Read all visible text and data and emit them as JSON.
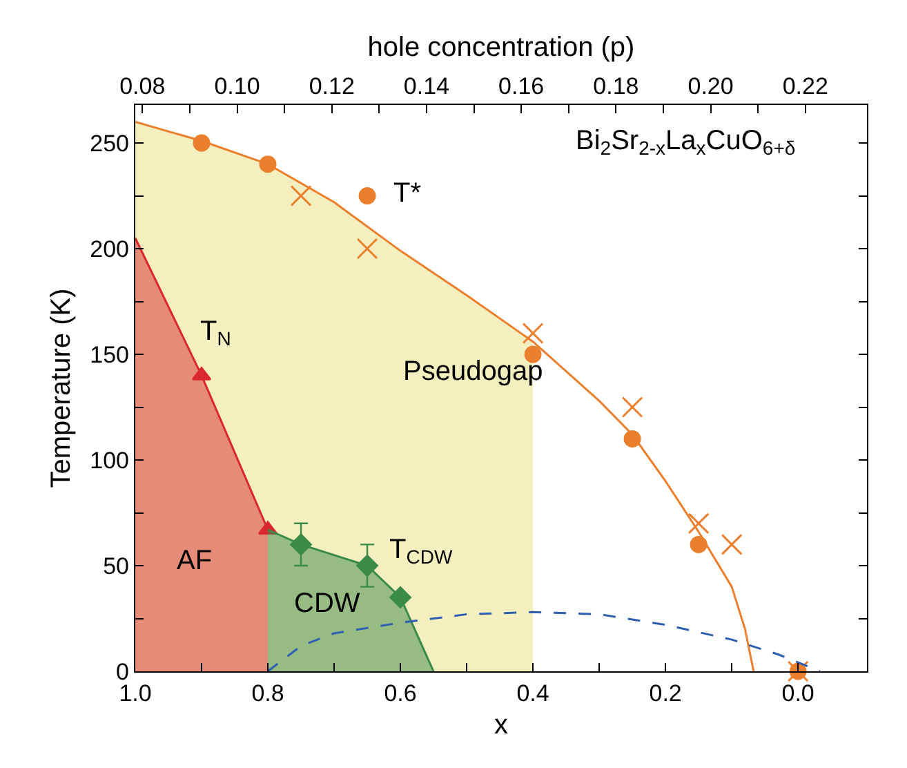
{
  "chart_data": {
    "type": "line",
    "xlabel": "x",
    "ylabel": "Temperature (K)",
    "x2label": "hole concentration (p)",
    "xlim": [
      1.0,
      -0.104
    ],
    "ylim": [
      0,
      268
    ],
    "x2lim": [
      0.0785,
      0.233
    ],
    "xticks": [
      {
        "value": 1.0,
        "label": "1.0"
      },
      {
        "value": 0.9,
        "label": null
      },
      0.8,
      {
        "value": 0.7,
        "label": null
      },
      0.6,
      {
        "value": 0.5,
        "label": null
      },
      0.4,
      {
        "value": 0.3,
        "label": null
      },
      0.2,
      {
        "value": 0.1,
        "label": null
      },
      {
        "value": 0,
        "label": "0.0"
      }
    ],
    "x2ticks": [
      {
        "value": 0.08,
        "label": "0.08"
      },
      {
        "value": 0.09,
        "label": null
      },
      {
        "value": 0.1,
        "label": "0.10"
      },
      {
        "value": 0.11,
        "label": null
      },
      {
        "value": 0.12,
        "label": "0.12"
      },
      {
        "value": 0.13,
        "label": null
      },
      {
        "value": 0.14,
        "label": "0.14"
      },
      {
        "value": 0.15,
        "label": null
      },
      {
        "value": 0.16,
        "label": "0.16"
      },
      {
        "value": 0.17,
        "label": null
      },
      {
        "value": 0.18,
        "label": "0.18"
      },
      {
        "value": 0.19,
        "label": null
      },
      {
        "value": 0.2,
        "label": "0.20"
      },
      {
        "value": 0.21,
        "label": null
      },
      {
        "value": 0.22,
        "label": "0.22"
      }
    ],
    "yticks": [
      0,
      {
        "value": 25,
        "label": null
      },
      50,
      {
        "value": 75,
        "label": null
      },
      100,
      {
        "value": 125,
        "label": null
      },
      150,
      {
        "value": 175,
        "label": null
      },
      200,
      {
        "value": 225,
        "label": null
      },
      250
    ],
    "series": [
      {
        "type": "area",
        "color": "#f3efbe",
        "x": [
          1.0,
          0.9,
          0.8,
          0.7,
          0.6,
          0.5,
          0.4
        ],
        "values": [
          260,
          251,
          240,
          222,
          199,
          178,
          156
        ]
      },
      {
        "color": "#ea7f2e",
        "marker": "none",
        "line_style": "solid",
        "x": [
          1.0,
          0.9,
          0.8,
          0.7,
          0.6,
          0.5,
          0.4,
          0.3,
          0.25,
          0.2,
          0.15,
          0.1,
          0.08,
          0.067
        ],
        "values": [
          260,
          251,
          240,
          222,
          199,
          178,
          156,
          128,
          112,
          90,
          66,
          40,
          20,
          0
        ]
      },
      {
        "type": "scatter",
        "color": "#ea7f2e",
        "marker": "circle",
        "x": [
          0.9,
          0.8,
          0.65,
          0.4,
          0.25,
          0.15,
          0.0
        ],
        "values": [
          250,
          240,
          225,
          150,
          110,
          60,
          0
        ]
      },
      {
        "type": "scatter",
        "color": "#ea7f2e",
        "marker": "cross",
        "x": [
          0.75,
          0.65,
          0.4,
          0.25,
          0.15,
          0.1,
          0.0
        ],
        "values": [
          225,
          200,
          160,
          125,
          70,
          60,
          0
        ]
      },
      {
        "type": "area",
        "color": "#d9282f",
        "line_style": "solid",
        "x": [
          1.0,
          0.9,
          0.8
        ],
        "values": [
          205,
          140,
          67
        ]
      },
      {
        "type": "scatter",
        "color": "#d9282f",
        "marker": "triangle",
        "x": [
          0.9,
          0.8
        ],
        "values": [
          140,
          67
        ]
      },
      {
        "type": "area",
        "color": "#3a8a48",
        "line_style": "solid",
        "x": [
          0.8,
          0.75,
          0.65,
          0.6,
          0.55
        ],
        "values": [
          67,
          60,
          50,
          35,
          0
        ]
      },
      {
        "type": "scatter",
        "color": "#3a8a48",
        "marker": "diamond",
        "x": [
          0.75,
          0.65,
          0.6
        ],
        "values": [
          60,
          50,
          35
        ],
        "errors": [
          10,
          10,
          null
        ]
      },
      {
        "color": "#2e5fb0",
        "marker": "none",
        "line_style": "dashed",
        "x": [
          0.8,
          0.75,
          0.7,
          0.6,
          0.5,
          0.4,
          0.3,
          0.2,
          0.1,
          0.03,
          -0.033
        ],
        "values": [
          0,
          12,
          18,
          23,
          27,
          28,
          27,
          22,
          15,
          8,
          0
        ]
      }
    ],
    "annotations": [
      "Bi$_{2}$Sr$_{2-x}$La$_{x}$CuO$_{6+δ}$",
      "T*",
      "T$_{N}$",
      "Pseudogap",
      "AF",
      "CDW",
      "T$_{CDW}$"
    ]
  }
}
